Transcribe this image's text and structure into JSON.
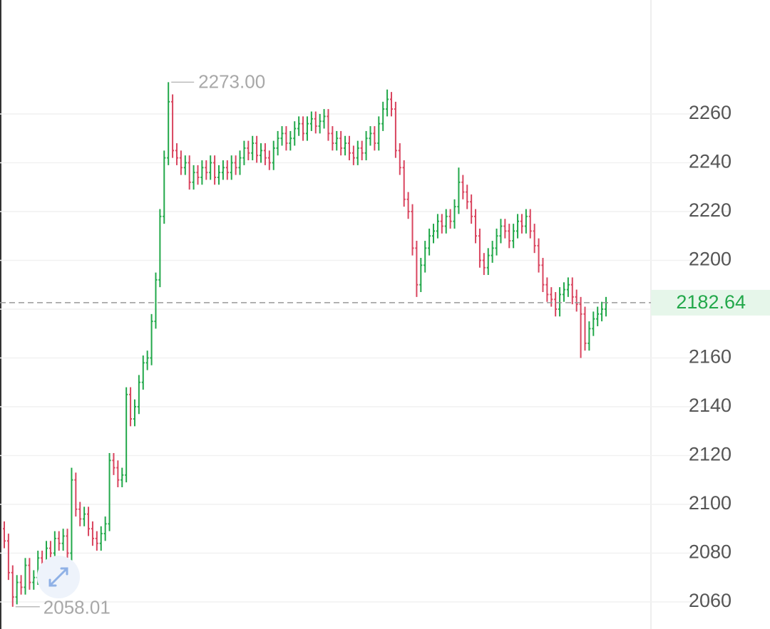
{
  "chart_data": {
    "type": "ohlc",
    "up_color": "#22a84a",
    "down_color": "#d9455f",
    "ylim": [
      2048.9,
      2306.7
    ],
    "yticks": [
      2060,
      2080,
      2100,
      2120,
      2140,
      2160,
      2180,
      2200,
      2220,
      2240,
      2260
    ],
    "grid": true,
    "max_label": {
      "value": 2273,
      "label": "2273.00"
    },
    "min_label": {
      "value": 2058.01,
      "label": "2058.01"
    },
    "last_price": 2182.64,
    "open": [
      2090,
      2085,
      2072,
      2062,
      2068,
      2066,
      2075,
      2068,
      2070,
      2078,
      2076,
      2082,
      2080,
      2086,
      2084,
      2087,
      2080,
      2110,
      2098,
      2094,
      2096,
      2090,
      2086,
      2084,
      2088,
      2092,
      2118,
      2115,
      2110,
      2112,
      2145,
      2135,
      2140,
      2150,
      2158,
      2160,
      2175,
      2192,
      2218,
      2242,
      2265,
      2245,
      2242,
      2238,
      2240,
      2232,
      2236,
      2234,
      2238,
      2236,
      2240,
      2234,
      2236,
      2238,
      2236,
      2240,
      2238,
      2242,
      2246,
      2244,
      2248,
      2243,
      2245,
      2242,
      2240,
      2246,
      2250,
      2252,
      2248,
      2250,
      2254,
      2256,
      2252,
      2256,
      2258,
      2255,
      2257,
      2259,
      2252,
      2248,
      2250,
      2246,
      2248,
      2244,
      2242,
      2246,
      2244,
      2250,
      2252,
      2248,
      2256,
      2262,
      2266,
      2262,
      2245,
      2238,
      2225,
      2220,
      2205,
      2190,
      2198,
      2205,
      2210,
      2212,
      2216,
      2214,
      2218,
      2216,
      2222,
      2232,
      2228,
      2224,
      2218,
      2210,
      2200,
      2197,
      2202,
      2205,
      2210,
      2214,
      2212,
      2208,
      2212,
      2216,
      2214,
      2218,
      2212,
      2206,
      2198,
      2190,
      2186,
      2184,
      2180,
      2186,
      2188,
      2190,
      2185,
      2182,
      2178,
      2166,
      2172,
      2176,
      2178,
      2180
    ],
    "high": [
      2093,
      2088,
      2075,
      2071,
      2071,
      2078,
      2078,
      2073,
      2081,
      2081,
      2085,
      2085,
      2089,
      2089,
      2090,
      2090,
      2115,
      2113,
      2101,
      2099,
      2099,
      2093,
      2089,
      2091,
      2095,
      2121,
      2121,
      2118,
      2115,
      2148,
      2148,
      2143,
      2153,
      2161,
      2163,
      2178,
      2195,
      2221,
      2245,
      2273,
      2268,
      2248,
      2245,
      2243,
      2243,
      2239,
      2239,
      2241,
      2241,
      2243,
      2243,
      2239,
      2241,
      2241,
      2243,
      2243,
      2245,
      2249,
      2249,
      2251,
      2251,
      2248,
      2248,
      2245,
      2249,
      2253,
      2255,
      2255,
      2253,
      2257,
      2259,
      2259,
      2259,
      2261,
      2261,
      2260,
      2262,
      2262,
      2255,
      2253,
      2253,
      2251,
      2251,
      2247,
      2249,
      2249,
      2253,
      2255,
      2255,
      2259,
      2265,
      2270,
      2269,
      2265,
      2248,
      2241,
      2228,
      2223,
      2208,
      2201,
      2208,
      2213,
      2215,
      2219,
      2219,
      2221,
      2221,
      2225,
      2238,
      2235,
      2231,
      2227,
      2221,
      2213,
      2203,
      2205,
      2208,
      2213,
      2217,
      2217,
      2215,
      2215,
      2219,
      2219,
      2221,
      2221,
      2215,
      2209,
      2201,
      2193,
      2189,
      2187,
      2189,
      2191,
      2193,
      2193,
      2188,
      2185,
      2181,
      2175,
      2179,
      2181,
      2183,
      2185
    ],
    "low": [
      2082,
      2069,
      2058.01,
      2059,
      2063,
      2063,
      2065,
      2065,
      2067,
      2073,
      2073,
      2077,
      2077,
      2081,
      2081,
      2077,
      2077,
      2095,
      2091,
      2091,
      2087,
      2083,
      2081,
      2081,
      2085,
      2089,
      2112,
      2107,
      2107,
      2109,
      2132,
      2132,
      2137,
      2147,
      2155,
      2157,
      2172,
      2189,
      2215,
      2239,
      2242,
      2239,
      2235,
      2235,
      2229,
      2229,
      2231,
      2231,
      2233,
      2233,
      2231,
      2231,
      2233,
      2233,
      2233,
      2235,
      2235,
      2239,
      2241,
      2241,
      2240,
      2240,
      2239,
      2237,
      2237,
      2243,
      2247,
      2245,
      2245,
      2247,
      2251,
      2249,
      2249,
      2253,
      2252,
      2252,
      2254,
      2249,
      2245,
      2245,
      2243,
      2243,
      2241,
      2239,
      2239,
      2241,
      2241,
      2247,
      2245,
      2245,
      2253,
      2259,
      2259,
      2242,
      2235,
      2222,
      2217,
      2202,
      2185,
      2187,
      2195,
      2202,
      2207,
      2209,
      2211,
      2211,
      2213,
      2213,
      2219,
      2225,
      2221,
      2215,
      2207,
      2197,
      2194,
      2194,
      2199,
      2202,
      2207,
      2209,
      2205,
      2205,
      2209,
      2211,
      2211,
      2209,
      2203,
      2195,
      2187,
      2183,
      2181,
      2177,
      2177,
      2183,
      2185,
      2182,
      2179,
      2160,
      2163,
      2163,
      2169,
      2173,
      2175,
      2177
    ],
    "close": [
      2085,
      2072,
      2062,
      2068,
      2066,
      2075,
      2068,
      2070,
      2078,
      2076,
      2082,
      2080,
      2086,
      2084,
      2087,
      2080,
      2110,
      2098,
      2094,
      2096,
      2090,
      2086,
      2084,
      2088,
      2092,
      2118,
      2115,
      2110,
      2112,
      2145,
      2135,
      2140,
      2150,
      2158,
      2160,
      2175,
      2192,
      2218,
      2242,
      2265,
      2245,
      2242,
      2238,
      2240,
      2232,
      2236,
      2234,
      2238,
      2236,
      2240,
      2234,
      2236,
      2238,
      2236,
      2240,
      2238,
      2242,
      2246,
      2244,
      2248,
      2243,
      2245,
      2242,
      2240,
      2246,
      2250,
      2252,
      2248,
      2250,
      2254,
      2256,
      2252,
      2256,
      2258,
      2255,
      2257,
      2259,
      2252,
      2248,
      2250,
      2246,
      2248,
      2244,
      2242,
      2246,
      2244,
      2250,
      2252,
      2248,
      2256,
      2262,
      2266,
      2262,
      2245,
      2238,
      2225,
      2220,
      2205,
      2190,
      2198,
      2205,
      2210,
      2212,
      2216,
      2214,
      2218,
      2216,
      2222,
      2232,
      2228,
      2224,
      2218,
      2210,
      2200,
      2197,
      2202,
      2205,
      2210,
      2214,
      2212,
      2208,
      2212,
      2216,
      2214,
      2218,
      2212,
      2206,
      2198,
      2190,
      2186,
      2184,
      2180,
      2186,
      2188,
      2190,
      2185,
      2182,
      2178,
      2166,
      2172,
      2176,
      2178,
      2180,
      2182.64
    ]
  }
}
